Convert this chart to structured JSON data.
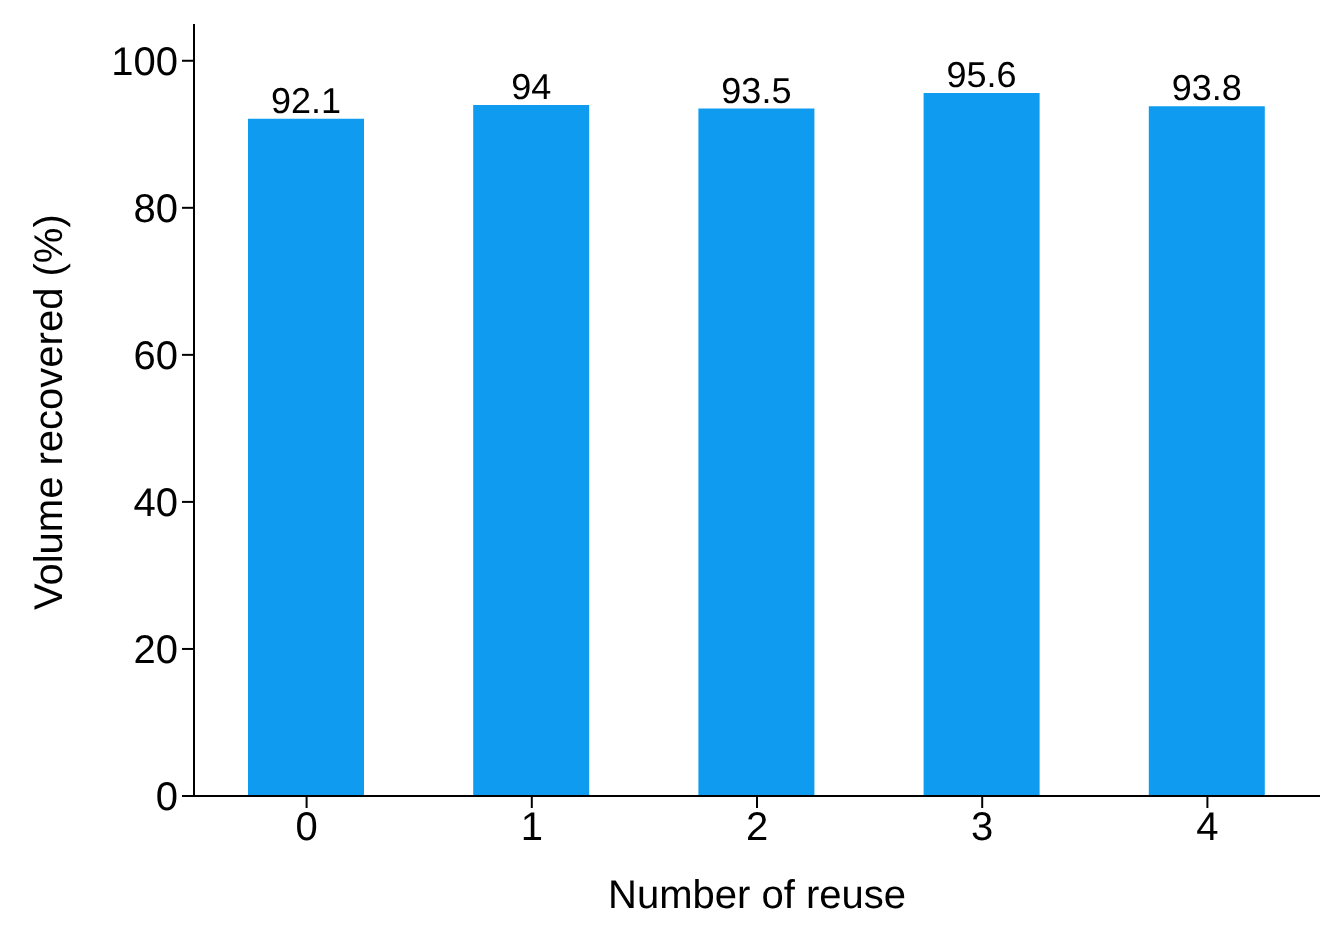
{
  "chart_data": {
    "type": "bar",
    "xlabel": "Number of reuse",
    "ylabel": "Volume recovered (%)",
    "categories": [
      "0",
      "1",
      "2",
      "3",
      "4"
    ],
    "values": [
      92.1,
      94,
      93.5,
      95.6,
      93.8
    ],
    "color": "#0f9cf0",
    "ylim": [
      0,
      105
    ],
    "yticks": [
      0,
      20,
      40,
      60,
      80,
      100
    ],
    "grid": false,
    "data_labels": true
  }
}
